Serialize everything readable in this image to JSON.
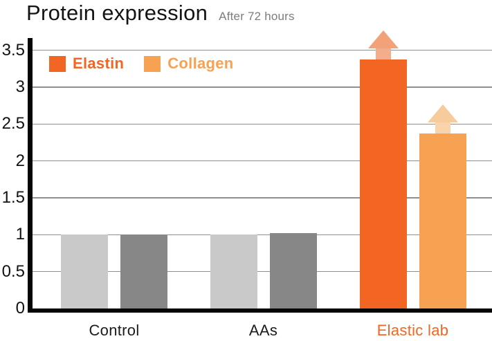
{
  "header": {
    "title": "Protein expression",
    "subtitle": "After 72 hours"
  },
  "legend": [
    {
      "label": "Elastin",
      "color": "#F26522"
    },
    {
      "label": "Collagen",
      "color": "#F7A153"
    }
  ],
  "axis": {
    "y_ticks": [
      "0",
      "0.5",
      "1",
      "1.5",
      "2",
      "2.5",
      "3",
      "3.5"
    ],
    "y_tick_values": [
      0,
      0.5,
      1,
      1.5,
      2,
      2.5,
      3,
      3.5
    ]
  },
  "chart_data": {
    "type": "bar",
    "title": "Protein expression",
    "subtitle": "After 72 hours",
    "categories": [
      "Control",
      "AAs",
      "Elastic lab"
    ],
    "series": [
      {
        "name": "Elastin",
        "values": [
          1,
          1,
          3.37
        ],
        "bar_colors": [
          "#C9C9C9",
          "#C9C9C9",
          "#F26522"
        ]
      },
      {
        "name": "Collagen",
        "values": [
          1,
          1.02,
          2.37
        ],
        "bar_colors": [
          "#878787",
          "#878787",
          "#F7A153"
        ]
      }
    ],
    "ylim": [
      0,
      3.5
    ],
    "grid": true,
    "legend_position": "top-left inside plot",
    "category_label_colors": [
      "#1B1B1B",
      "#1B1B1B",
      "#F26522"
    ],
    "annotations": [
      {
        "type": "up-arrow",
        "category": "Elastic lab",
        "series": "Elastin",
        "head_color": "#F2A178",
        "stem_color": "#F4AD8C"
      },
      {
        "type": "up-arrow",
        "category": "Elastic lab",
        "series": "Collagen",
        "head_color": "#F7CB9B",
        "stem_color": "#F9D3A9"
      }
    ]
  },
  "colors": {
    "grid": "#8F8F8F",
    "axis": "#050505",
    "text": "#1B1B1B",
    "subtitle": "#7C7C7C",
    "background": "#FFFFFF"
  }
}
